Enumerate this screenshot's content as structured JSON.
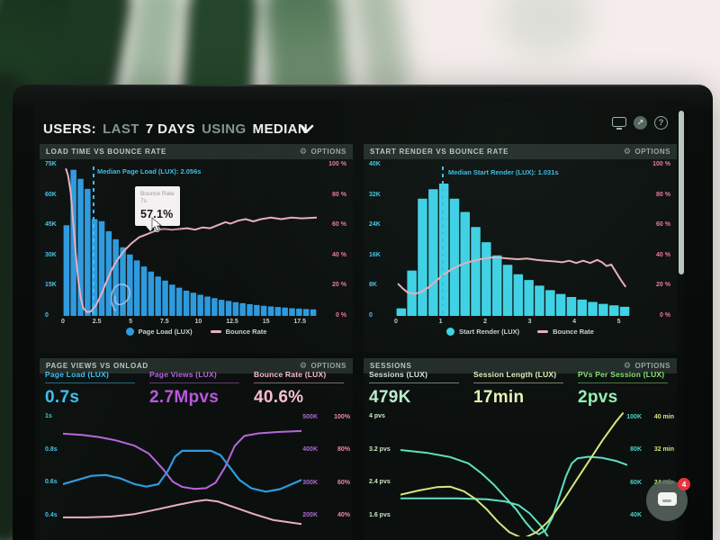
{
  "appbar": {
    "title_segments": [
      {
        "t": "USERS:",
        "dim": false
      },
      {
        "t": "LAST",
        "dim": true
      },
      {
        "t": "7 DAYS",
        "dim": false
      },
      {
        "t": "USING",
        "dim": true
      },
      {
        "t": "MEDIAN",
        "dim": false
      }
    ],
    "icons": [
      "monitor",
      "share",
      "help"
    ],
    "help_glyph": "?",
    "share_glyph": "↗"
  },
  "options_label": "OPTIONS",
  "gear_glyph": "⚙",
  "panels": {
    "load_time": {
      "title": "LOAD TIME VS BOUNCE RATE"
    },
    "start_render": {
      "title": "START RENDER VS BOUNCE RATE"
    },
    "page_views": {
      "title": "PAGE VIEWS VS ONLOAD",
      "stats": [
        {
          "label": "Page Load (LUX)",
          "value": "0.7s",
          "color": "#3cc0ee",
          "value_color": "#3cc0ee"
        },
        {
          "label": "Page Views (LUX)",
          "value": "2.7Mpvs",
          "color": "#b464d8",
          "value_color": "#bb58dd"
        },
        {
          "label": "Bounce Rate (LUX)",
          "value": "40.6%",
          "color": "#f6bcd0",
          "value_color": "#f9bed2"
        }
      ]
    },
    "sessions": {
      "title": "SESSIONS",
      "stats": [
        {
          "label": "Sessions (LUX)",
          "value": "479K",
          "color": "#d6e8de",
          "value_color": "#bdeccf"
        },
        {
          "label": "Session Length (LUX)",
          "value": "17min",
          "color": "#e9f0bd",
          "value_color": "#e9f2b4"
        },
        {
          "label": "PVs Per Session (LUX)",
          "value": "2pvs",
          "color": "#8ce07d",
          "value_color": "#97f0b4"
        }
      ]
    }
  },
  "chart_data": {
    "load_time_vs_bounce": {
      "type": "bar",
      "title": "LOAD TIME VS BOUNCE RATE",
      "x_max": 18.75,
      "x_ticks": [
        "0",
        "2.5",
        "5",
        "7.5",
        "10",
        "12.5",
        "15",
        "17.5"
      ],
      "y_left_labels": [
        "75K",
        "60K",
        "45K",
        "30K",
        "15K",
        "0"
      ],
      "y_right_labels": [
        "100 %",
        "80 %",
        "60 %",
        "40 %",
        "20 %",
        "0 %"
      ],
      "bars": {
        "color": "#2d9ade",
        "y_max": 75,
        "unit": "K sessions",
        "values": [
          45,
          72.5,
          68,
          63,
          48,
          47,
          42,
          38,
          34,
          30.5,
          27.5,
          24.5,
          22,
          19.5,
          17.5,
          15.5,
          14,
          12.5,
          11.5,
          10.5,
          9.6,
          8.8,
          8,
          7.4,
          6.8,
          6.3,
          5.8,
          5.4,
          5,
          4.7,
          4.4,
          4.1,
          3.8,
          3.6,
          3.4,
          3.2
        ]
      },
      "lines": [
        {
          "name": "Bounce Rate",
          "color": "#eaaebd",
          "width": 2,
          "y_min": 0,
          "y_max": 100,
          "unit": "%",
          "points": [
            [
              0.012,
              97
            ],
            [
              0.02,
              93
            ],
            [
              0.03,
              82
            ],
            [
              0.04,
              62
            ],
            [
              0.05,
              42
            ],
            [
              0.06,
              24
            ],
            [
              0.07,
              12
            ],
            [
              0.08,
              5
            ],
            [
              0.095,
              2.5
            ],
            [
              0.11,
              3
            ],
            [
              0.13,
              7
            ],
            [
              0.15,
              14
            ],
            [
              0.17,
              22
            ],
            [
              0.19,
              30
            ],
            [
              0.21,
              36
            ],
            [
              0.24,
              43
            ],
            [
              0.27,
              48
            ],
            [
              0.3,
              52
            ],
            [
              0.33,
              54
            ],
            [
              0.36,
              56
            ],
            [
              0.373,
              57.1
            ],
            [
              0.4,
              57.5
            ],
            [
              0.43,
              57
            ],
            [
              0.46,
              57.5
            ],
            [
              0.49,
              58
            ],
            [
              0.52,
              57
            ],
            [
              0.55,
              58.5
            ],
            [
              0.58,
              58
            ],
            [
              0.61,
              60
            ],
            [
              0.64,
              62
            ],
            [
              0.66,
              61
            ],
            [
              0.69,
              63
            ],
            [
              0.72,
              64
            ],
            [
              0.75,
              62.5
            ],
            [
              0.78,
              64
            ],
            [
              0.82,
              65
            ],
            [
              0.86,
              64
            ],
            [
              0.9,
              65
            ],
            [
              0.94,
              64.5
            ],
            [
              1,
              65
            ]
          ]
        }
      ],
      "median": {
        "label": "Median Page Load (LUX): 2.056s",
        "frac": 0.117
      },
      "legend": [
        {
          "label": "Page Load (LUX)",
          "marker": "dot",
          "color": "#2d9ade"
        },
        {
          "label": "Bounce Rate",
          "marker": "line",
          "color": "#eaaebd"
        }
      ],
      "tooltip": {
        "title": "Bounce Rate",
        "x_label": "7s",
        "value": "57.1%",
        "point_frac": 0.373,
        "point_y": 57.1
      }
    },
    "start_render_vs_bounce": {
      "type": "bar",
      "title": "START RENDER VS BOUNCE RATE",
      "x_max": 5.25,
      "x_ticks": [
        "0",
        "1",
        "2",
        "3",
        "4",
        "5"
      ],
      "y_left_labels": [
        "40K",
        "32K",
        "24K",
        "16K",
        "8K",
        "0"
      ],
      "y_right_labels": [
        "100 %",
        "80 %",
        "60 %",
        "40 %",
        "20 %",
        "0 %"
      ],
      "bars": {
        "color": "#3ed2e6",
        "y_max": 40,
        "unit": "K sessions",
        "values": [
          2,
          12,
          31,
          33.5,
          35,
          31,
          27.5,
          23.5,
          19.5,
          16,
          13.5,
          11,
          9.5,
          8,
          6.8,
          5.8,
          5,
          4.3,
          3.7,
          3.2,
          2.8,
          2.4
        ]
      },
      "lines": [
        {
          "name": "Bounce Rate",
          "color": "#eaaebd",
          "width": 2,
          "y_min": 0,
          "y_max": 100,
          "unit": "%",
          "points": [
            [
              0.01,
              21
            ],
            [
              0.03,
              18
            ],
            [
              0.05,
              15.5
            ],
            [
              0.08,
              14.5
            ],
            [
              0.11,
              16
            ],
            [
              0.14,
              19
            ],
            [
              0.17,
              23
            ],
            [
              0.2,
              27
            ],
            [
              0.24,
              31
            ],
            [
              0.28,
              34
            ],
            [
              0.32,
              36
            ],
            [
              0.36,
              37.5
            ],
            [
              0.4,
              38.5
            ],
            [
              0.44,
              38.5
            ],
            [
              0.48,
              38
            ],
            [
              0.52,
              37.5
            ],
            [
              0.56,
              38
            ],
            [
              0.6,
              37
            ],
            [
              0.64,
              36.5
            ],
            [
              0.68,
              36
            ],
            [
              0.71,
              35.5
            ],
            [
              0.74,
              36.5
            ],
            [
              0.77,
              35
            ],
            [
              0.8,
              36.5
            ],
            [
              0.83,
              35
            ],
            [
              0.86,
              37
            ],
            [
              0.88,
              35.5
            ],
            [
              0.9,
              33
            ],
            [
              0.92,
              34
            ],
            [
              0.94,
              29
            ],
            [
              0.96,
              24
            ],
            [
              0.98,
              19.5
            ]
          ]
        }
      ],
      "median": {
        "label": "Median Start Render (LUX): 1.031s",
        "frac": 0.196
      },
      "legend": [
        {
          "label": "Start Render (LUX)",
          "marker": "dot",
          "color": "#3ed2e6"
        },
        {
          "label": "Bounce Rate",
          "marker": "line",
          "color": "#eaaebd"
        }
      ]
    },
    "page_views_vs_onload": {
      "type": "line",
      "title": "PAGE VIEWS VS ONLOAD",
      "y_left_labels": [
        "1s",
        "0.8s",
        "0.6s",
        "0.4s"
      ],
      "y_right_labels": [
        [
          "500K",
          "100%"
        ],
        [
          "400K",
          "80%"
        ],
        [
          "300K",
          "60%"
        ],
        [
          "200K",
          "40%"
        ]
      ],
      "lines": [
        {
          "name": "Page Views",
          "color": "#b965dd",
          "width": 2,
          "y_min": 143,
          "y_max": 522,
          "unit": "K",
          "points": [
            [
              0,
              452
            ],
            [
              0.08,
              448
            ],
            [
              0.15,
              442
            ],
            [
              0.22,
              432
            ],
            [
              0.3,
              416
            ],
            [
              0.36,
              392
            ],
            [
              0.42,
              345
            ],
            [
              0.46,
              308
            ],
            [
              0.5,
              292
            ],
            [
              0.55,
              286
            ],
            [
              0.6,
              288
            ],
            [
              0.64,
              305
            ],
            [
              0.68,
              352
            ],
            [
              0.72,
              415
            ],
            [
              0.76,
              445
            ],
            [
              0.82,
              453
            ],
            [
              0.9,
              457
            ],
            [
              1,
              460
            ]
          ]
        },
        {
          "name": "Page Load",
          "color": "#2f9ade",
          "width": 2.2,
          "y_min": 0.286,
          "y_max": 1.043,
          "unit": "s",
          "points": [
            [
              0,
              0.6
            ],
            [
              0.06,
              0.625
            ],
            [
              0.12,
              0.65
            ],
            [
              0.18,
              0.655
            ],
            [
              0.24,
              0.635
            ],
            [
              0.3,
              0.6
            ],
            [
              0.35,
              0.585
            ],
            [
              0.4,
              0.6
            ],
            [
              0.44,
              0.68
            ],
            [
              0.47,
              0.765
            ],
            [
              0.5,
              0.8
            ],
            [
              0.56,
              0.8
            ],
            [
              0.62,
              0.8
            ],
            [
              0.66,
              0.775
            ],
            [
              0.7,
              0.7
            ],
            [
              0.74,
              0.625
            ],
            [
              0.79,
              0.575
            ],
            [
              0.85,
              0.555
            ],
            [
              0.91,
              0.57
            ],
            [
              1,
              0.625
            ]
          ]
        },
        {
          "name": "Bounce Rate",
          "color": "#edaebe",
          "width": 2,
          "y_min": 28.6,
          "y_max": 104.3,
          "unit": "%",
          "points": [
            [
              0,
              40
            ],
            [
              0.1,
              40
            ],
            [
              0.2,
              40.5
            ],
            [
              0.3,
              42
            ],
            [
              0.4,
              45
            ],
            [
              0.48,
              47.5
            ],
            [
              0.55,
              49.5
            ],
            [
              0.6,
              50.5
            ],
            [
              0.65,
              49.5
            ],
            [
              0.72,
              46
            ],
            [
              0.8,
              42
            ],
            [
              0.88,
              38.5
            ],
            [
              1,
              36
            ]
          ]
        }
      ]
    },
    "sessions": {
      "type": "line",
      "title": "SESSIONS",
      "y_left_labels": [
        "4 pvs",
        "3.2 pvs",
        "2.4 pvs",
        "1.6 pvs"
      ],
      "y_right_labels": [
        [
          "100K",
          "40 min"
        ],
        [
          "80K",
          "32 min"
        ],
        [
          "60K",
          "24 min"
        ],
        [
          "40K",
          ""
        ]
      ],
      "lines": [
        {
          "name": "PVs Per Session A",
          "color": "#5fe0c0",
          "width": 2,
          "y_min": 1.15,
          "y_max": 4.17,
          "unit": "pvs",
          "points": [
            [
              0,
              3.22
            ],
            [
              0.12,
              3.15
            ],
            [
              0.22,
              3.05
            ],
            [
              0.3,
              2.9
            ],
            [
              0.36,
              2.65
            ],
            [
              0.41,
              2.4
            ],
            [
              0.46,
              2.1
            ],
            [
              0.51,
              1.8
            ],
            [
              0.55,
              1.5
            ],
            [
              0.585,
              1.28
            ],
            [
              0.61,
              1.2
            ],
            [
              0.64,
              1.3
            ],
            [
              0.67,
              1.6
            ],
            [
              0.7,
              2.1
            ],
            [
              0.73,
              2.6
            ],
            [
              0.755,
              2.9
            ],
            [
              0.78,
              3.02
            ],
            [
              0.83,
              3.06
            ],
            [
              0.89,
              3.03
            ],
            [
              0.95,
              2.96
            ],
            [
              1,
              2.86
            ]
          ]
        },
        {
          "name": "PVs Per Session B",
          "color": "#5fe0c0",
          "width": 2,
          "y_min": 1.15,
          "y_max": 4.17,
          "unit": "pvs",
          "points": [
            [
              0,
              2.06
            ],
            [
              0.25,
              2.06
            ],
            [
              0.38,
              2.04
            ],
            [
              0.46,
              1.99
            ],
            [
              0.52,
              1.9
            ],
            [
              0.57,
              1.7
            ],
            [
              0.62,
              1.4
            ],
            [
              0.655,
              1.1
            ]
          ]
        },
        {
          "name": "Session Length",
          "color": "#d4e87f",
          "width": 2,
          "y_min": 11.5,
          "y_max": 41.7,
          "unit": "min",
          "points": [
            [
              0,
              21.5
            ],
            [
              0.08,
              22.5
            ],
            [
              0.16,
              23.3
            ],
            [
              0.22,
              23.4
            ],
            [
              0.28,
              22.3
            ],
            [
              0.33,
              20.5
            ],
            [
              0.38,
              18
            ],
            [
              0.43,
              15
            ],
            [
              0.48,
              12.5
            ],
            [
              0.54,
              11
            ],
            [
              0.6,
              12.5
            ],
            [
              0.65,
              15
            ],
            [
              0.71,
              19.5
            ],
            [
              0.77,
              24.5
            ],
            [
              0.83,
              29.5
            ],
            [
              0.89,
              34.5
            ],
            [
              0.95,
              39
            ],
            [
              0.98,
              41
            ]
          ]
        }
      ]
    }
  },
  "chat": {
    "badge": "4"
  }
}
